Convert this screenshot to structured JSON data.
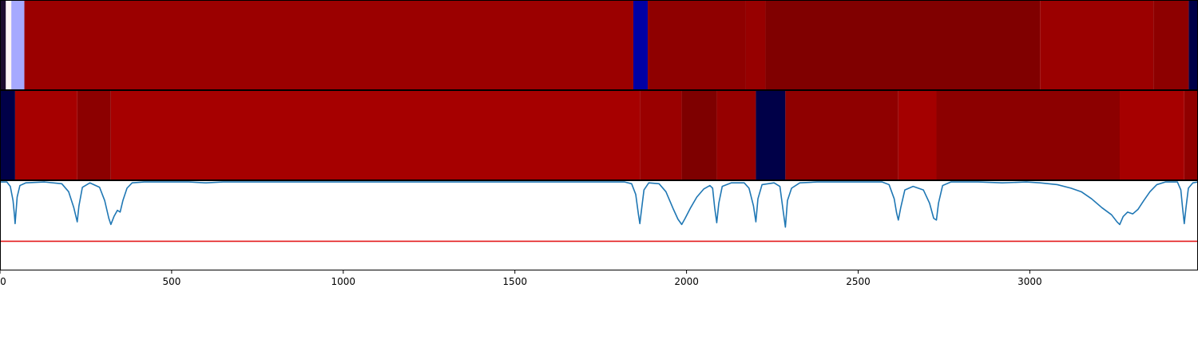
{
  "chart_data": {
    "type": "heatmap",
    "xlim": [
      0,
      3490
    ],
    "x_ticks": [
      0,
      500,
      1000,
      1500,
      2000,
      2500,
      3000
    ],
    "x_tick_labels": [
      "0",
      "500",
      "1000",
      "1500",
      "2000",
      "2500",
      "3000"
    ],
    "grid": false,
    "panels": [
      {
        "kind": "segment-heatmap",
        "segments": [
          {
            "start": 0,
            "end": 17,
            "color": "#1e0b2e"
          },
          {
            "start": 17,
            "end": 33,
            "color": "#fff4f4"
          },
          {
            "start": 33,
            "end": 71,
            "color": "#a6a9ff"
          },
          {
            "start": 71,
            "end": 1845,
            "color": "#9b0000"
          },
          {
            "start": 1845,
            "end": 1887,
            "color": "#0000a4"
          },
          {
            "start": 1887,
            "end": 2173,
            "color": "#8f0000"
          },
          {
            "start": 2173,
            "end": 2230,
            "color": "#970000"
          },
          {
            "start": 2230,
            "end": 3030,
            "color": "#800000"
          },
          {
            "start": 3030,
            "end": 3360,
            "color": "#9b0000"
          },
          {
            "start": 3360,
            "end": 3463,
            "color": "#8d0000"
          },
          {
            "start": 3463,
            "end": 3490,
            "color": "#000048"
          }
        ]
      },
      {
        "kind": "segment-heatmap",
        "segments": [
          {
            "start": 0,
            "end": 44,
            "color": "#000048"
          },
          {
            "start": 44,
            "end": 225,
            "color": "#a60000"
          },
          {
            "start": 225,
            "end": 323,
            "color": "#8c0000"
          },
          {
            "start": 323,
            "end": 1864,
            "color": "#a60000"
          },
          {
            "start": 1864,
            "end": 1986,
            "color": "#9a0000"
          },
          {
            "start": 1986,
            "end": 2088,
            "color": "#7e0000"
          },
          {
            "start": 2088,
            "end": 2202,
            "color": "#960000"
          },
          {
            "start": 2202,
            "end": 2288,
            "color": "#000048"
          },
          {
            "start": 2288,
            "end": 2617,
            "color": "#8f0000"
          },
          {
            "start": 2617,
            "end": 2728,
            "color": "#a40000"
          },
          {
            "start": 2728,
            "end": 3262,
            "color": "#8c0000"
          },
          {
            "start": 3262,
            "end": 3450,
            "color": "#a60000"
          },
          {
            "start": 3450,
            "end": 3490,
            "color": "#900000"
          }
        ]
      },
      {
        "kind": "line",
        "ylim": [
          -1,
          0
        ],
        "series": [
          {
            "color": "#1f77b4",
            "points": [
              [
                0,
                -0.01
              ],
              [
                20,
                -0.01
              ],
              [
                30,
                -0.06
              ],
              [
                38,
                -0.22
              ],
              [
                42,
                -0.38
              ],
              [
                44,
                -0.48
              ],
              [
                46,
                -0.38
              ],
              [
                50,
                -0.18
              ],
              [
                58,
                -0.05
              ],
              [
                75,
                -0.02
              ],
              [
                130,
                -0.01
              ],
              [
                180,
                -0.03
              ],
              [
                200,
                -0.12
              ],
              [
                215,
                -0.3
              ],
              [
                225,
                -0.46
              ],
              [
                230,
                -0.28
              ],
              [
                240,
                -0.07
              ],
              [
                262,
                -0.02
              ],
              [
                290,
                -0.07
              ],
              [
                305,
                -0.22
              ],
              [
                317,
                -0.42
              ],
              [
                323,
                -0.49
              ],
              [
                332,
                -0.4
              ],
              [
                342,
                -0.33
              ],
              [
                350,
                -0.35
              ],
              [
                358,
                -0.22
              ],
              [
                370,
                -0.08
              ],
              [
                385,
                -0.02
              ],
              [
                420,
                -0.01
              ],
              [
                550,
                -0.01
              ],
              [
                600,
                -0.02
              ],
              [
                650,
                -0.01
              ],
              [
                1300,
                -0.01
              ],
              [
                1400,
                -0.01
              ],
              [
                1500,
                -0.01
              ],
              [
                1700,
                -0.01
              ],
              [
                1820,
                -0.01
              ],
              [
                1840,
                -0.03
              ],
              [
                1852,
                -0.15
              ],
              [
                1860,
                -0.38
              ],
              [
                1864,
                -0.48
              ],
              [
                1868,
                -0.35
              ],
              [
                1876,
                -0.1
              ],
              [
                1890,
                -0.02
              ],
              [
                1920,
                -0.03
              ],
              [
                1940,
                -0.12
              ],
              [
                1962,
                -0.32
              ],
              [
                1975,
                -0.43
              ],
              [
                1986,
                -0.49
              ],
              [
                1996,
                -0.42
              ],
              [
                2012,
                -0.3
              ],
              [
                2030,
                -0.18
              ],
              [
                2050,
                -0.09
              ],
              [
                2068,
                -0.05
              ],
              [
                2076,
                -0.08
              ],
              [
                2082,
                -0.3
              ],
              [
                2088,
                -0.47
              ],
              [
                2094,
                -0.25
              ],
              [
                2104,
                -0.06
              ],
              [
                2130,
                -0.02
              ],
              [
                2168,
                -0.02
              ],
              [
                2182,
                -0.08
              ],
              [
                2195,
                -0.28
              ],
              [
                2202,
                -0.46
              ],
              [
                2208,
                -0.2
              ],
              [
                2220,
                -0.04
              ],
              [
                2255,
                -0.02
              ],
              [
                2272,
                -0.06
              ],
              [
                2282,
                -0.35
              ],
              [
                2288,
                -0.52
              ],
              [
                2294,
                -0.22
              ],
              [
                2306,
                -0.08
              ],
              [
                2330,
                -0.02
              ],
              [
                2380,
                -0.01
              ],
              [
                2500,
                -0.01
              ],
              [
                2570,
                -0.01
              ],
              [
                2590,
                -0.04
              ],
              [
                2605,
                -0.2
              ],
              [
                2612,
                -0.36
              ],
              [
                2617,
                -0.44
              ],
              [
                2624,
                -0.3
              ],
              [
                2636,
                -0.1
              ],
              [
                2660,
                -0.06
              ],
              [
                2690,
                -0.1
              ],
              [
                2708,
                -0.25
              ],
              [
                2720,
                -0.42
              ],
              [
                2728,
                -0.44
              ],
              [
                2734,
                -0.25
              ],
              [
                2746,
                -0.05
              ],
              [
                2770,
                -0.01
              ],
              [
                2850,
                -0.01
              ],
              [
                2920,
                -0.02
              ],
              [
                2990,
                -0.01
              ],
              [
                3030,
                -0.02
              ],
              [
                3080,
                -0.04
              ],
              [
                3120,
                -0.08
              ],
              [
                3150,
                -0.12
              ],
              [
                3180,
                -0.2
              ],
              [
                3210,
                -0.3
              ],
              [
                3238,
                -0.38
              ],
              [
                3254,
                -0.46
              ],
              [
                3262,
                -0.49
              ],
              [
                3272,
                -0.4
              ],
              [
                3285,
                -0.35
              ],
              [
                3300,
                -0.37
              ],
              [
                3315,
                -0.32
              ],
              [
                3332,
                -0.22
              ],
              [
                3350,
                -0.12
              ],
              [
                3370,
                -0.04
              ],
              [
                3395,
                -0.01
              ],
              [
                3430,
                -0.01
              ],
              [
                3440,
                -0.1
              ],
              [
                3445,
                -0.3
              ],
              [
                3450,
                -0.48
              ],
              [
                3455,
                -0.3
              ],
              [
                3462,
                -0.08
              ],
              [
                3475,
                -0.02
              ],
              [
                3490,
                -0.01
              ]
            ]
          }
        ],
        "threshold": {
          "y": -0.68,
          "color": "#e31a1c"
        }
      }
    ]
  }
}
